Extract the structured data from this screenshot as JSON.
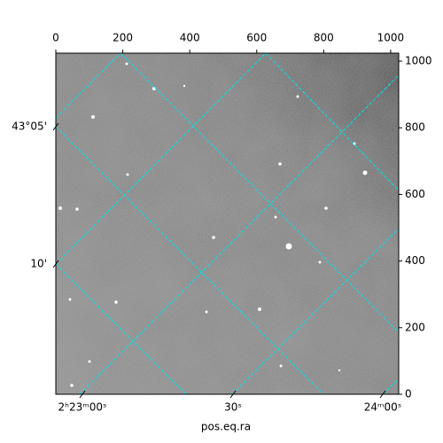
{
  "chart_data": {
    "type": "image",
    "xlim": [
      0,
      1024
    ],
    "ylim": [
      0,
      1024
    ],
    "xticks": [
      0,
      200,
      400,
      600,
      800,
      1000
    ],
    "yticks": [
      0,
      200,
      400,
      600,
      800,
      1000
    ],
    "grid": true,
    "grid_color": "#00e5e5",
    "xlabel": "pos.eq.ra",
    "world_x_ticks": [
      "2ʰ23ᵐ00ˢ",
      "30ˢ",
      "24ᵐ00ˢ"
    ],
    "world_y_ticks": [
      "43°05'",
      "10'"
    ]
  }
}
